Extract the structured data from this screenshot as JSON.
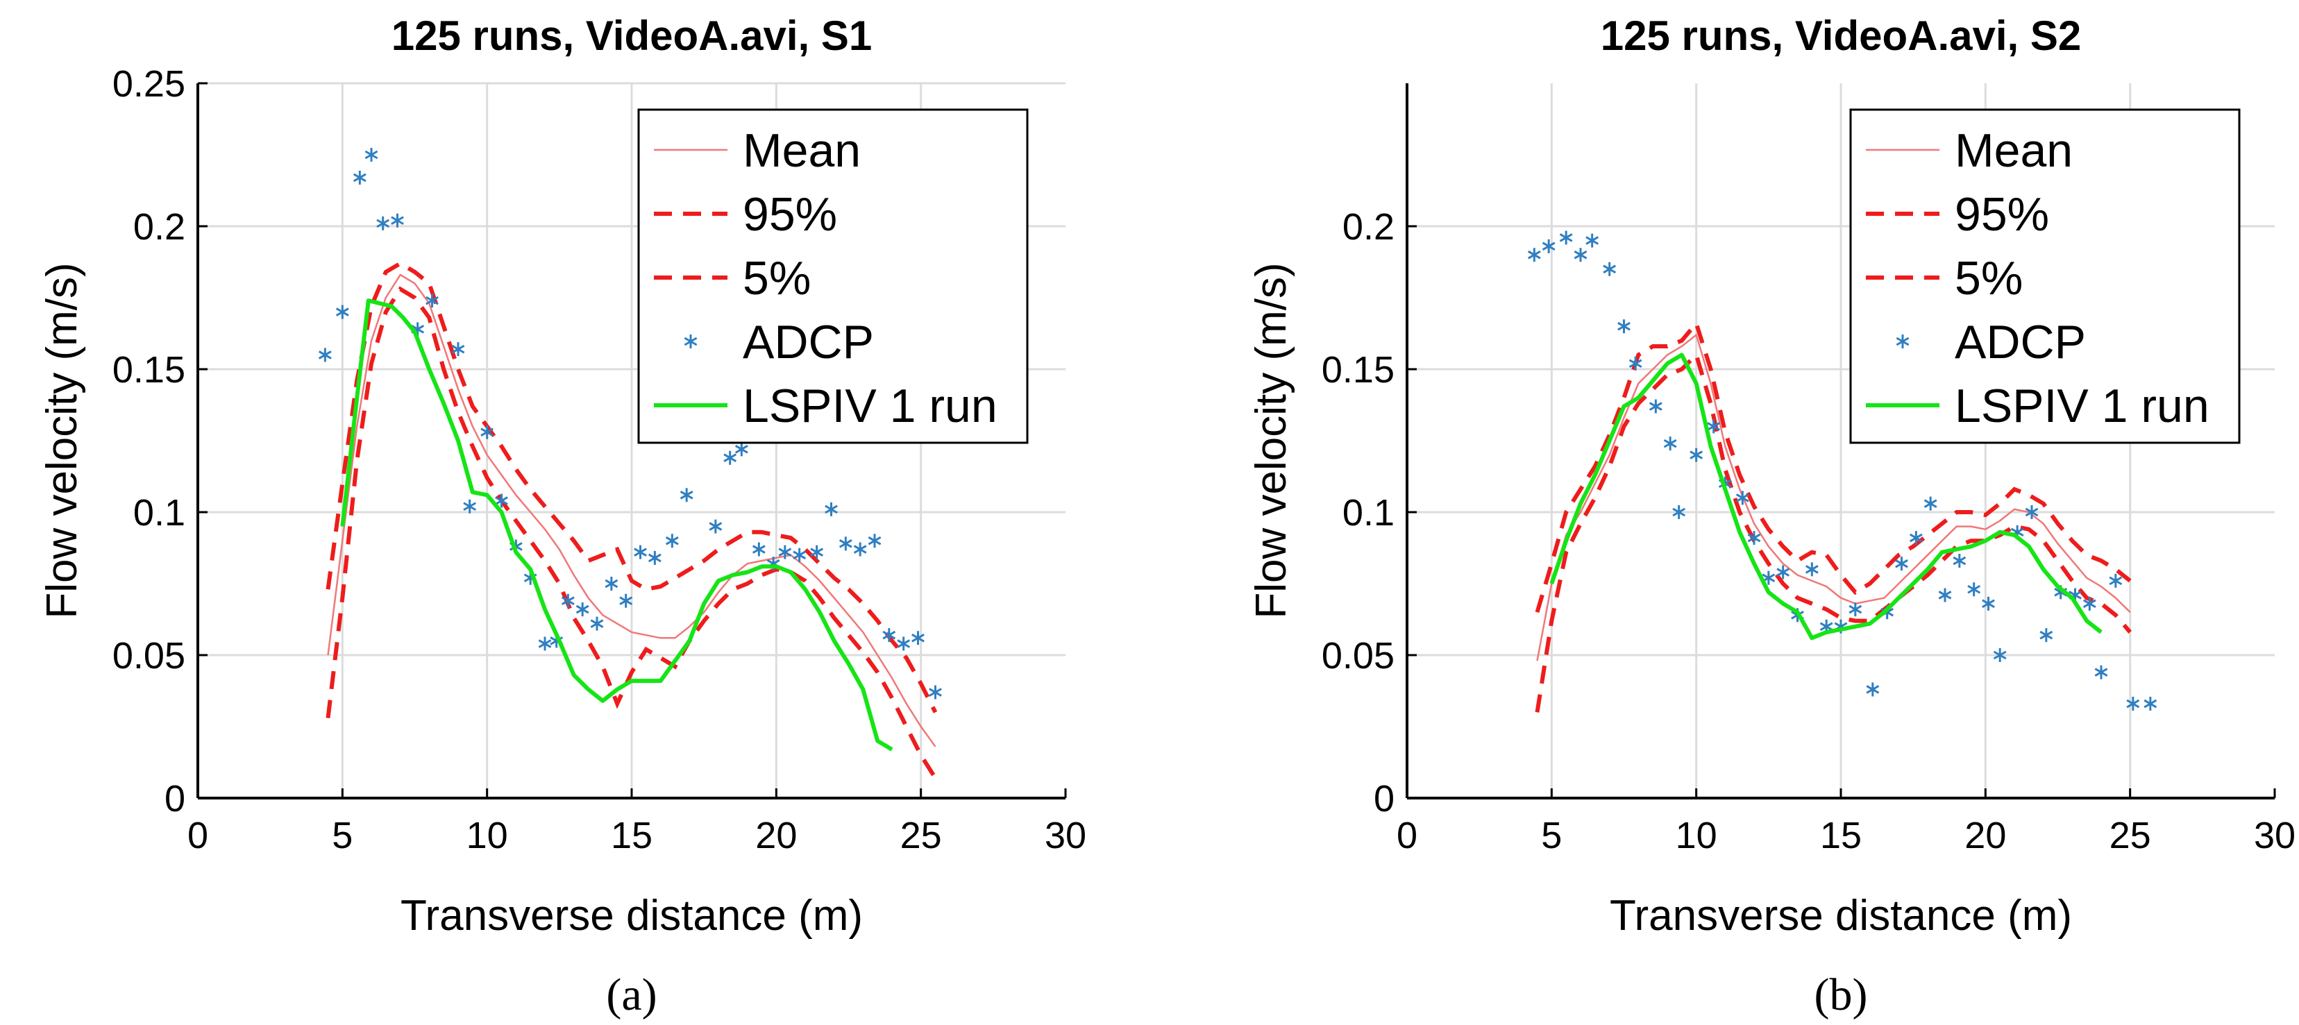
{
  "colors": {
    "mean": "#f07878",
    "bounds": "#ee1c1c",
    "adcp": "#2f7fc1",
    "lspiv": "#16e416",
    "grid": "#dcdcdc",
    "axis": "#000000"
  },
  "chart_data": [
    {
      "type": "line",
      "panel_label": "(a)",
      "title": "125 runs, VideoA.avi, S1",
      "xlabel": "Transverse distance (m)",
      "ylabel": "Flow velocity (m/s)",
      "xlim": [
        0,
        30
      ],
      "ylim": [
        0,
        0.25
      ],
      "xticks": [
        0,
        5,
        10,
        15,
        20,
        25,
        30
      ],
      "yticks": [
        0,
        0.05,
        0.1,
        0.15,
        0.2,
        0.25
      ],
      "ytick_labels": [
        "0",
        "0.05",
        "0.1",
        "0.15",
        "0.2",
        "0.25"
      ],
      "grid": true,
      "legend": [
        "Mean",
        "95%",
        "5%",
        "ADCP",
        "LSPIV 1 run"
      ],
      "legend_position": "top-right",
      "series": [
        {
          "name": "Mean",
          "style": "thin-solid",
          "x": [
            4.5,
            5.0,
            5.5,
            6.0,
            6.5,
            7.0,
            7.5,
            8.0,
            8.5,
            9.0,
            9.5,
            10.0,
            10.5,
            11.0,
            11.5,
            12.0,
            12.5,
            13.0,
            13.5,
            14.0,
            14.5,
            15.0,
            15.5,
            16.0,
            16.5,
            17.0,
            17.5,
            18.0,
            18.5,
            19.0,
            19.5,
            20.0,
            20.5,
            21.0,
            21.5,
            22.0,
            22.5,
            23.0,
            23.5,
            24.0,
            24.5,
            25.0,
            25.5
          ],
          "y": [
            0.05,
            0.09,
            0.13,
            0.16,
            0.175,
            0.183,
            0.18,
            0.173,
            0.158,
            0.143,
            0.13,
            0.12,
            0.113,
            0.106,
            0.1,
            0.094,
            0.087,
            0.078,
            0.07,
            0.064,
            0.061,
            0.058,
            0.057,
            0.056,
            0.056,
            0.06,
            0.065,
            0.072,
            0.078,
            0.082,
            0.083,
            0.084,
            0.085,
            0.081,
            0.076,
            0.07,
            0.064,
            0.058,
            0.05,
            0.042,
            0.033,
            0.025,
            0.018
          ]
        },
        {
          "name": "95%",
          "style": "dashed",
          "x": [
            4.5,
            5.0,
            5.5,
            6.0,
            6.5,
            7.0,
            7.5,
            8.0,
            8.5,
            9.0,
            9.5,
            10.0,
            10.5,
            11.0,
            11.5,
            12.0,
            12.5,
            13.0,
            13.5,
            14.0,
            14.5,
            15.0,
            15.5,
            16.0,
            16.5,
            17.0,
            17.5,
            18.0,
            18.5,
            19.0,
            19.5,
            20.0,
            20.5,
            21.0,
            21.5,
            22.0,
            22.5,
            23.0,
            23.5,
            24.0,
            24.5,
            25.0,
            25.5
          ],
          "y": [
            0.073,
            0.11,
            0.146,
            0.172,
            0.184,
            0.187,
            0.184,
            0.18,
            0.165,
            0.15,
            0.137,
            0.13,
            0.123,
            0.115,
            0.108,
            0.102,
            0.096,
            0.09,
            0.083,
            0.085,
            0.087,
            0.076,
            0.073,
            0.074,
            0.077,
            0.08,
            0.083,
            0.087,
            0.09,
            0.093,
            0.093,
            0.092,
            0.091,
            0.087,
            0.082,
            0.077,
            0.073,
            0.068,
            0.062,
            0.055,
            0.049,
            0.04,
            0.03
          ]
        },
        {
          "name": "5%",
          "style": "dashed",
          "x": [
            4.5,
            5.0,
            5.5,
            6.0,
            6.5,
            7.0,
            7.5,
            8.0,
            8.5,
            9.0,
            9.5,
            10.0,
            10.5,
            11.0,
            11.5,
            12.0,
            12.5,
            13.0,
            13.5,
            14.0,
            14.5,
            15.0,
            15.5,
            16.0,
            16.5,
            17.0,
            17.5,
            18.0,
            18.5,
            19.0,
            19.5,
            20.0,
            20.5,
            21.0,
            21.5,
            22.0,
            22.5,
            23.0,
            23.5,
            24.0,
            24.5,
            25.0,
            25.5
          ],
          "y": [
            0.028,
            0.07,
            0.118,
            0.152,
            0.17,
            0.178,
            0.175,
            0.168,
            0.15,
            0.135,
            0.123,
            0.112,
            0.104,
            0.097,
            0.09,
            0.083,
            0.075,
            0.063,
            0.055,
            0.046,
            0.033,
            0.044,
            0.052,
            0.049,
            0.046,
            0.055,
            0.062,
            0.068,
            0.073,
            0.075,
            0.078,
            0.08,
            0.079,
            0.076,
            0.07,
            0.063,
            0.057,
            0.051,
            0.044,
            0.035,
            0.025,
            0.015,
            0.007
          ]
        },
        {
          "name": "ADCP",
          "style": "asterisk",
          "x": [
            4.4,
            5.0,
            5.6,
            6.0,
            6.4,
            6.9,
            7.6,
            8.1,
            9.0,
            9.4,
            10.0,
            10.5,
            11.0,
            11.5,
            12.0,
            12.4,
            12.8,
            13.3,
            13.8,
            14.3,
            14.8,
            15.3,
            15.8,
            16.4,
            16.9,
            17.9,
            18.4,
            18.8,
            19.4,
            19.9,
            20.3,
            20.8,
            21.4,
            21.9,
            22.4,
            22.9,
            23.4,
            23.9,
            24.4,
            24.9,
            25.5
          ],
          "y": [
            0.155,
            0.17,
            0.217,
            0.225,
            0.201,
            0.202,
            0.164,
            0.174,
            0.157,
            0.102,
            0.128,
            0.104,
            0.088,
            0.077,
            0.054,
            0.055,
            0.069,
            0.066,
            0.061,
            0.075,
            0.069,
            0.086,
            0.084,
            0.09,
            0.106,
            0.095,
            0.119,
            0.122,
            0.087,
            0.082,
            0.086,
            0.085,
            0.086,
            0.101,
            0.089,
            0.087,
            0.09,
            0.057,
            0.054,
            0.056,
            0.037
          ]
        },
        {
          "name": "LSPIV 1 run",
          "style": "thick-solid",
          "x": [
            5.0,
            5.5,
            5.9,
            6.7,
            7.1,
            7.5,
            8.0,
            8.5,
            9.0,
            9.5,
            10.0,
            10.5,
            11.0,
            11.5,
            12.0,
            12.5,
            13.0,
            13.5,
            14.0,
            14.5,
            15.0,
            15.5,
            16.0,
            16.5,
            17.0,
            17.5,
            18.0,
            18.5,
            19.0,
            19.5,
            20.0,
            20.5,
            21.0,
            21.5,
            22.0,
            22.5,
            23.0,
            23.5,
            24.0
          ],
          "y": [
            0.095,
            0.14,
            0.174,
            0.172,
            0.168,
            0.163,
            0.15,
            0.138,
            0.125,
            0.107,
            0.106,
            0.1,
            0.086,
            0.08,
            0.066,
            0.055,
            0.043,
            0.038,
            0.034,
            0.038,
            0.041,
            0.041,
            0.041,
            0.048,
            0.055,
            0.068,
            0.076,
            0.078,
            0.079,
            0.081,
            0.081,
            0.079,
            0.073,
            0.065,
            0.055,
            0.047,
            0.038,
            0.02,
            0.017
          ]
        }
      ]
    },
    {
      "type": "line",
      "panel_label": "(b)",
      "title": "125 runs, VideoA.avi, S2",
      "xlabel": "Transverse distance (m)",
      "ylabel": "Flow velocity (m/s)",
      "xlim": [
        0,
        30
      ],
      "ylim": [
        0,
        0.25
      ],
      "xticks": [
        0,
        5,
        10,
        15,
        20,
        25,
        30
      ],
      "yticks": [
        0,
        0.05,
        0.1,
        0.15,
        0.2
      ],
      "ytick_labels": [
        "0",
        "0.05",
        "0.1",
        "0.15",
        "0.2"
      ],
      "grid": true,
      "legend": [
        "Mean",
        "95%",
        "5%",
        "ADCP",
        "LSPIV 1 run"
      ],
      "legend_position": "top-right",
      "series": [
        {
          "name": "Mean",
          "style": "thin-solid",
          "x": [
            4.5,
            5.0,
            5.5,
            6.0,
            6.5,
            7.0,
            7.5,
            8.0,
            8.5,
            9.0,
            9.5,
            10.0,
            10.5,
            11.0,
            11.5,
            12.0,
            12.5,
            13.0,
            13.5,
            14.0,
            14.5,
            15.0,
            15.5,
            16.0,
            16.5,
            17.0,
            17.5,
            18.0,
            18.5,
            19.0,
            19.5,
            20.0,
            20.5,
            21.0,
            21.5,
            22.0,
            22.5,
            23.0,
            23.5,
            24.0,
            24.5,
            25.0
          ],
          "y": [
            0.048,
            0.075,
            0.092,
            0.1,
            0.11,
            0.12,
            0.133,
            0.145,
            0.15,
            0.155,
            0.158,
            0.162,
            0.145,
            0.123,
            0.108,
            0.096,
            0.088,
            0.082,
            0.078,
            0.076,
            0.074,
            0.07,
            0.068,
            0.069,
            0.07,
            0.075,
            0.08,
            0.085,
            0.09,
            0.095,
            0.095,
            0.094,
            0.097,
            0.101,
            0.1,
            0.096,
            0.089,
            0.083,
            0.077,
            0.074,
            0.07,
            0.065
          ]
        },
        {
          "name": "95%",
          "style": "dashed",
          "x": [
            4.5,
            5.0,
            5.5,
            6.0,
            6.5,
            7.0,
            7.5,
            8.0,
            8.5,
            9.0,
            9.5,
            10.0,
            10.5,
            11.0,
            11.5,
            12.0,
            12.5,
            13.0,
            13.5,
            14.0,
            14.5,
            15.0,
            15.5,
            16.0,
            16.5,
            17.0,
            17.5,
            18.0,
            18.5,
            19.0,
            19.5,
            20.0,
            20.5,
            21.0,
            21.5,
            22.0,
            22.5,
            23.0,
            23.5,
            24.0,
            24.5,
            25.0
          ],
          "y": [
            0.065,
            0.082,
            0.1,
            0.108,
            0.116,
            0.127,
            0.14,
            0.155,
            0.158,
            0.158,
            0.16,
            0.166,
            0.15,
            0.128,
            0.113,
            0.102,
            0.094,
            0.088,
            0.083,
            0.086,
            0.085,
            0.078,
            0.072,
            0.075,
            0.08,
            0.085,
            0.088,
            0.092,
            0.096,
            0.1,
            0.1,
            0.099,
            0.103,
            0.108,
            0.106,
            0.103,
            0.096,
            0.09,
            0.085,
            0.083,
            0.08,
            0.076
          ]
        },
        {
          "name": "5%",
          "style": "dashed",
          "x": [
            4.5,
            5.0,
            5.5,
            6.0,
            6.5,
            7.0,
            7.5,
            8.0,
            8.5,
            9.0,
            9.5,
            10.0,
            10.5,
            11.0,
            11.5,
            12.0,
            12.5,
            13.0,
            13.5,
            14.0,
            14.5,
            15.0,
            15.5,
            16.0,
            16.5,
            17.0,
            17.5,
            18.0,
            18.5,
            19.0,
            19.5,
            20.0,
            20.5,
            21.0,
            21.5,
            22.0,
            22.5,
            23.0,
            23.5,
            24.0,
            24.5,
            25.0
          ],
          "y": [
            0.03,
            0.062,
            0.086,
            0.096,
            0.105,
            0.116,
            0.13,
            0.138,
            0.143,
            0.148,
            0.15,
            0.155,
            0.138,
            0.115,
            0.1,
            0.09,
            0.082,
            0.075,
            0.07,
            0.068,
            0.066,
            0.063,
            0.062,
            0.062,
            0.066,
            0.07,
            0.074,
            0.078,
            0.083,
            0.088,
            0.09,
            0.09,
            0.092,
            0.095,
            0.094,
            0.09,
            0.083,
            0.076,
            0.07,
            0.068,
            0.064,
            0.058
          ]
        },
        {
          "name": "ADCP",
          "style": "asterisk",
          "x": [
            4.4,
            4.9,
            5.5,
            6.0,
            6.4,
            7.0,
            7.5,
            7.9,
            8.6,
            9.1,
            9.4,
            10.0,
            10.6,
            11.0,
            11.6,
            12.0,
            12.5,
            13.0,
            13.5,
            14.0,
            14.5,
            15.0,
            15.5,
            16.1,
            16.6,
            17.1,
            17.6,
            18.1,
            18.6,
            19.1,
            19.6,
            20.1,
            20.5,
            21.1,
            21.6,
            22.1,
            22.6,
            23.1,
            23.6,
            24.0,
            24.5,
            25.1,
            25.7
          ],
          "y": [
            0.19,
            0.193,
            0.196,
            0.19,
            0.195,
            0.185,
            0.165,
            0.152,
            0.137,
            0.124,
            0.1,
            0.12,
            0.13,
            0.11,
            0.105,
            0.091,
            0.077,
            0.079,
            0.064,
            0.08,
            0.06,
            0.06,
            0.066,
            0.038,
            0.065,
            0.082,
            0.091,
            0.103,
            0.071,
            0.083,
            0.073,
            0.068,
            0.05,
            0.093,
            0.1,
            0.057,
            0.072,
            0.071,
            0.068,
            0.044,
            0.076,
            0.033,
            0.033
          ]
        },
        {
          "name": "LSPIV 1 run",
          "style": "thick-solid",
          "x": [
            5.0,
            5.5,
            6.0,
            6.5,
            7.0,
            7.5,
            8.0,
            8.5,
            9.0,
            9.5,
            10.0,
            10.5,
            11.0,
            11.5,
            12.0,
            12.5,
            13.0,
            13.5,
            14.0,
            14.5,
            15.0,
            15.5,
            16.0,
            16.5,
            17.0,
            17.5,
            18.0,
            18.5,
            19.0,
            19.5,
            20.0,
            20.5,
            21.0,
            21.5,
            22.0,
            22.5,
            23.0,
            23.5,
            24.0
          ],
          "y": [
            0.075,
            0.09,
            0.103,
            0.113,
            0.125,
            0.137,
            0.14,
            0.146,
            0.152,
            0.155,
            0.145,
            0.123,
            0.108,
            0.093,
            0.082,
            0.072,
            0.068,
            0.065,
            0.056,
            0.058,
            0.059,
            0.06,
            0.061,
            0.065,
            0.07,
            0.075,
            0.08,
            0.086,
            0.087,
            0.088,
            0.09,
            0.093,
            0.092,
            0.088,
            0.08,
            0.074,
            0.07,
            0.062,
            0.058
          ]
        }
      ]
    }
  ]
}
